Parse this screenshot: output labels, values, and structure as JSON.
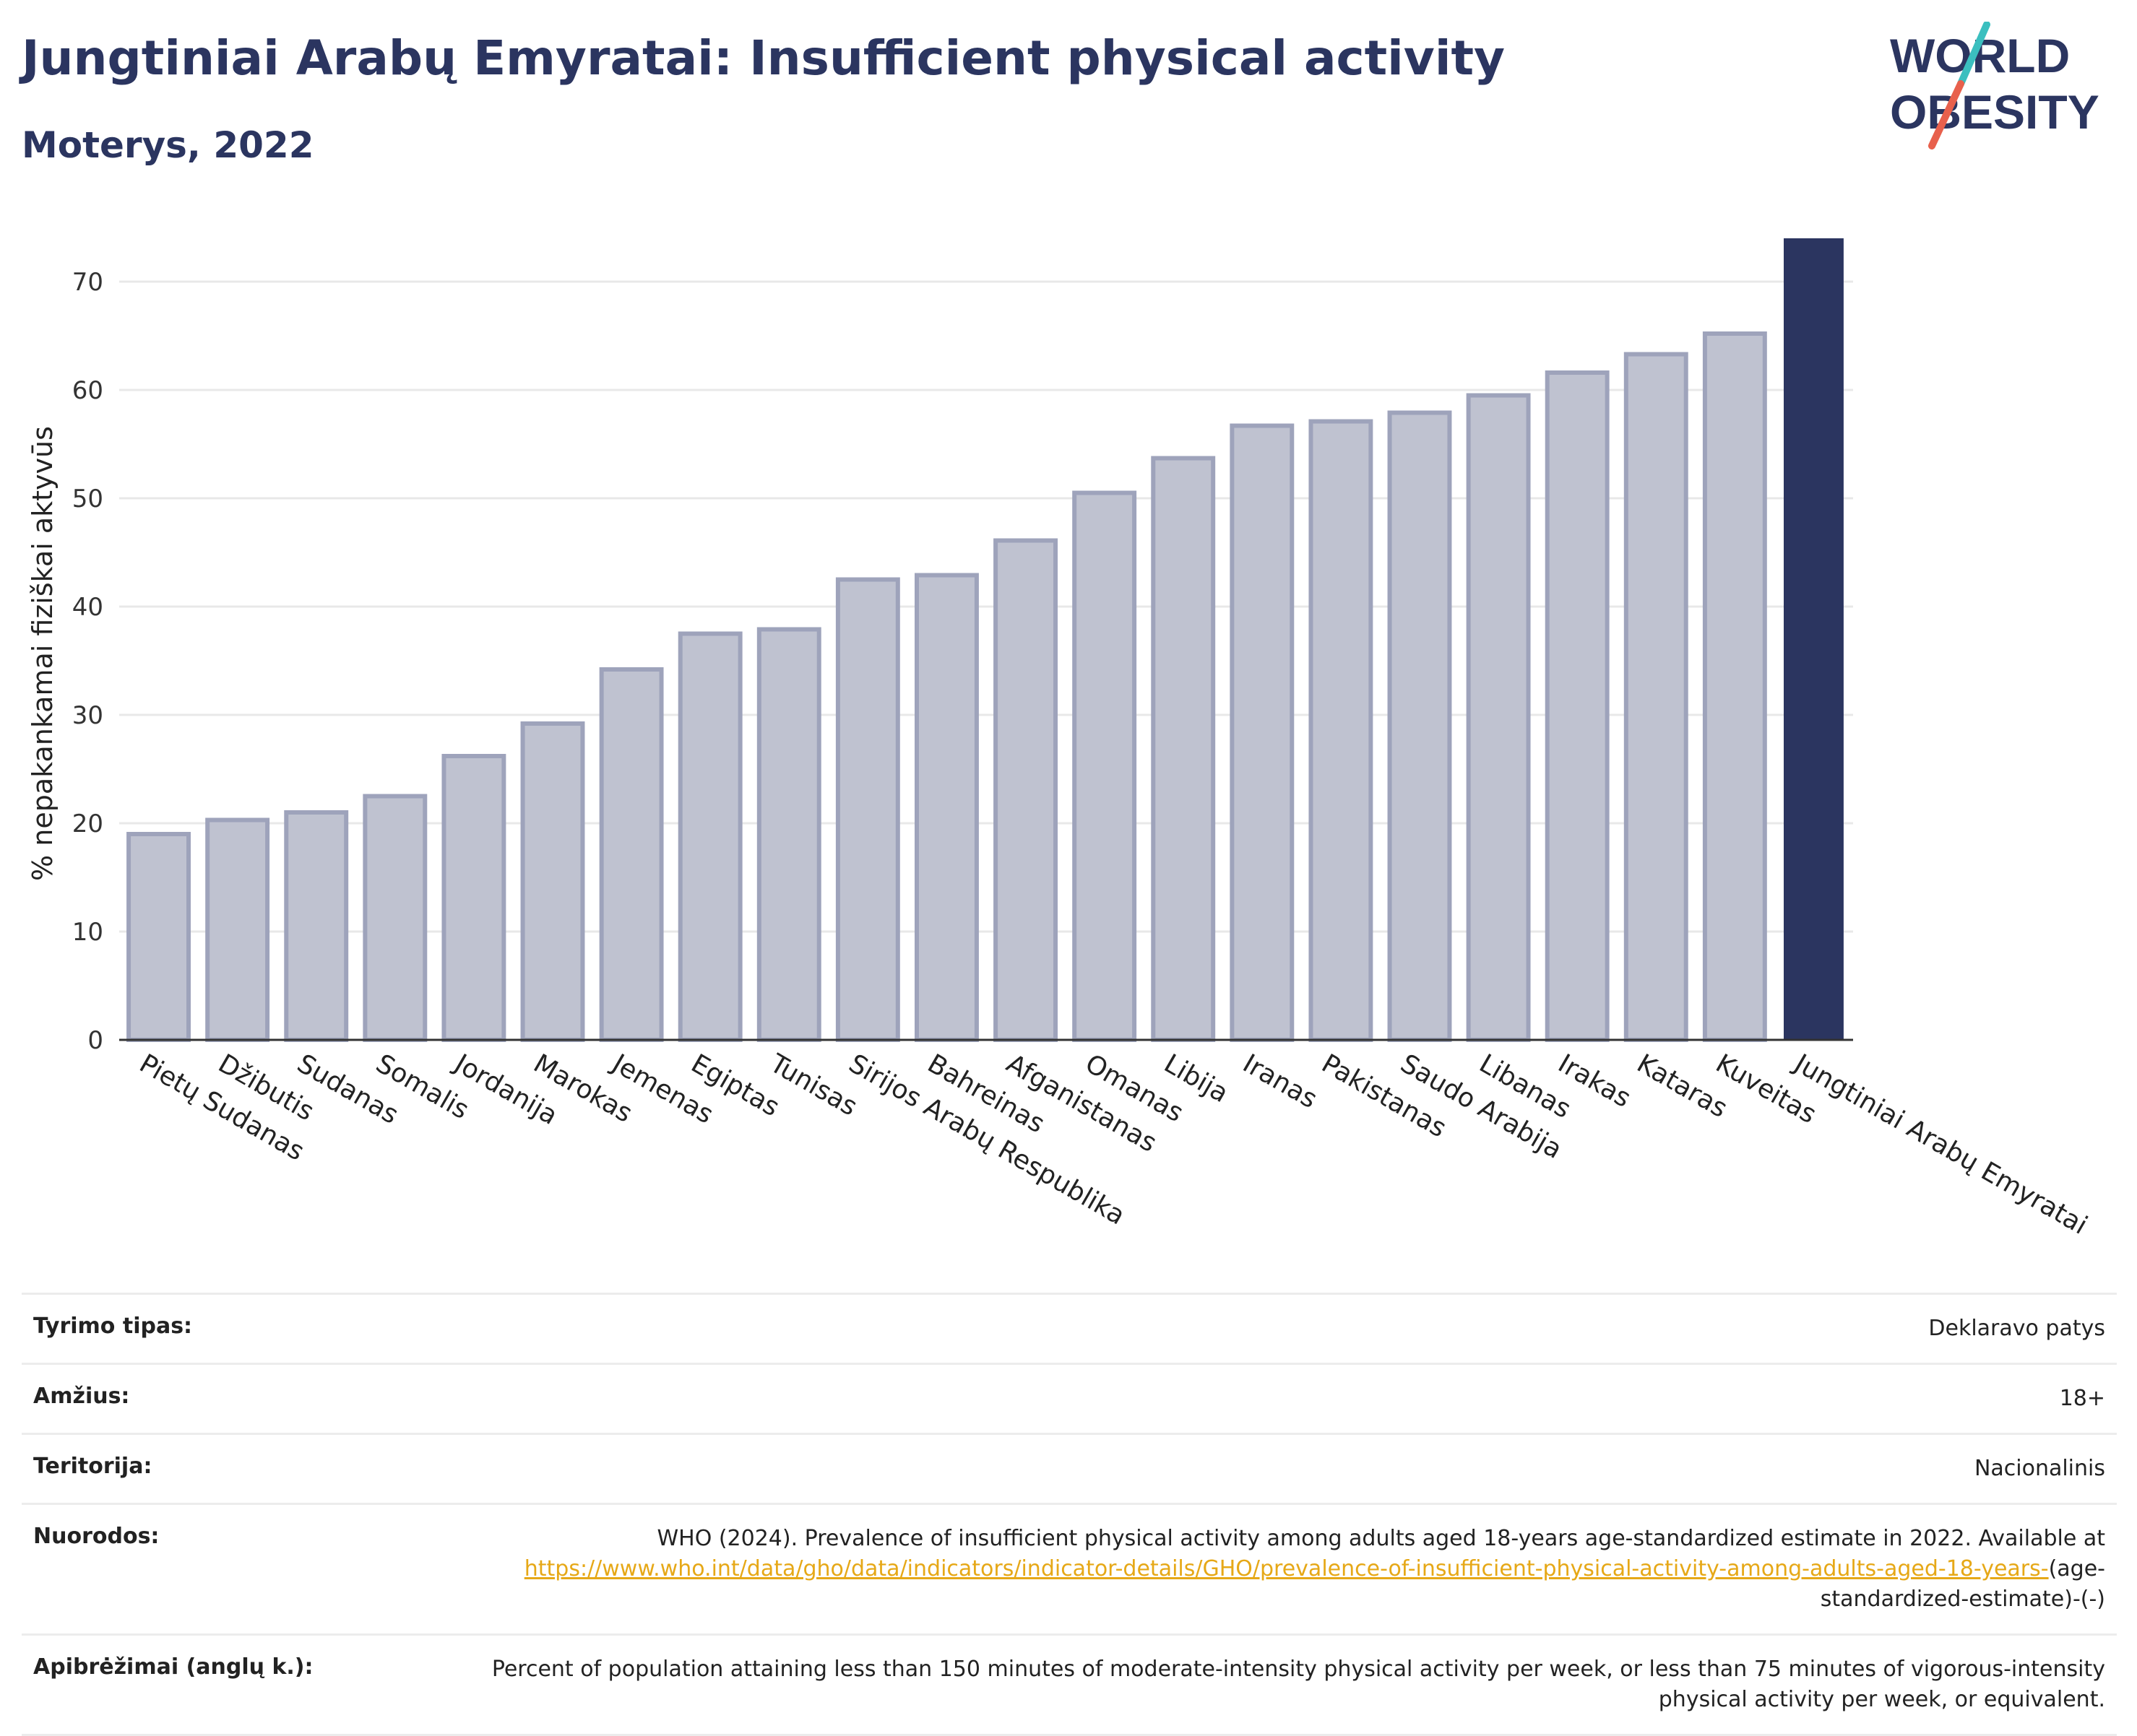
{
  "header": {
    "title": "Jungtiniai Arabų Emyratai: Insufficient physical activity",
    "subtitle": "Moterys, 2022"
  },
  "logo": {
    "line1": "WORLD",
    "line2": "OBESITY"
  },
  "chart_data": {
    "type": "bar",
    "ylabel": "% nepakankamai fiziškai aktyvūs",
    "xlabel": "",
    "ylim": [
      0,
      74
    ],
    "yticks": [
      0,
      10,
      20,
      30,
      40,
      50,
      60,
      70
    ],
    "grid": true,
    "categories": [
      "Pietų Sudanas",
      "Džibutis",
      "Sudanas",
      "Somalis",
      "Jordanija",
      "Marokas",
      "Jemenas",
      "Egiptas",
      "Tunisas",
      "Sirijos Arabų Respublika",
      "Bahreinas",
      "Afganistanas",
      "Omanas",
      "Libija",
      "Iranas",
      "Pakistanas",
      "Saudo Arabija",
      "Libanas",
      "Irakas",
      "Kataras",
      "Kuveitas",
      "Jungtiniai Arabų Emyratai"
    ],
    "values": [
      19.0,
      20.3,
      21.0,
      22.5,
      26.2,
      29.2,
      34.2,
      37.5,
      37.9,
      42.5,
      42.9,
      46.1,
      50.5,
      53.7,
      56.7,
      57.1,
      57.9,
      59.5,
      61.6,
      63.3,
      65.2,
      74.0
    ],
    "highlight": "Jungtiniai Arabų Emyratai",
    "colors": {
      "bar": "#bfc2d0",
      "bar_border": "#9ea3bb",
      "highlight": "#2b3560",
      "grid": "#e8e8e8",
      "axis": "#333333"
    }
  },
  "meta": {
    "rows": [
      {
        "label": "Tyrimo tipas:",
        "value": "Deklaravo patys"
      },
      {
        "label": "Amžius:",
        "value": "18+"
      },
      {
        "label": "Teritorija:",
        "value": "Nacionalinis"
      }
    ],
    "references": {
      "label": "Nuorodos:",
      "text": "WHO (2024). Prevalence of insufficient physical activity among adults aged 18-years age-standardized estimate in 2022. Available at",
      "link": "https://www.who.int/data/gho/data/indicators/indicator-details/GHO/prevalence-of-insufficient-physical-activity-among-adults-aged-18-years-",
      "suffix": "(age-standardized-estimate)-(-)"
    },
    "definitions": {
      "label": "Apibrėžimai (anglų k.):",
      "value": "Percent of population attaining less than 150 minutes of moderate-intensity physical activity per week, or less than 75 minutes of vigorous-intensity physical activity per week, or equivalent."
    }
  }
}
